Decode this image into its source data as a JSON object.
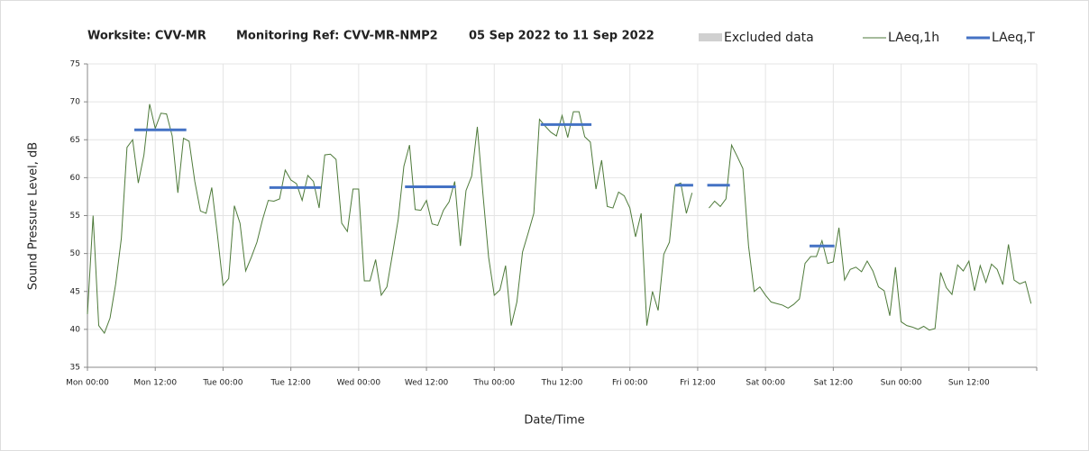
{
  "chart_data": {
    "type": "line",
    "title_parts": [
      "Worksite: CVV-MR",
      "Monitoring Ref: CVV-MR-NMP2",
      "05 Sep 2022 to 11 Sep 2022"
    ],
    "xlabel": "Date/Time",
    "ylabel": "Sound Pressure Level, dB",
    "xlim": [
      0,
      168
    ],
    "ylim": [
      35,
      75
    ],
    "grid": true,
    "yticks": [
      35,
      40,
      45,
      50,
      55,
      60,
      65,
      70,
      75
    ],
    "xticks": [
      {
        "value": 0,
        "label": "Mon 00:00"
      },
      {
        "value": 12,
        "label": "Mon 12:00"
      },
      {
        "value": 24,
        "label": "Tue 00:00"
      },
      {
        "value": 36,
        "label": "Tue 12:00"
      },
      {
        "value": 48,
        "label": "Wed 00:00"
      },
      {
        "value": 60,
        "label": "Wed 12:00"
      },
      {
        "value": 72,
        "label": "Thu 00:00"
      },
      {
        "value": 84,
        "label": "Thu 12:00"
      },
      {
        "value": 96,
        "label": "Fri 00:00"
      },
      {
        "value": 108,
        "label": "Fri 12:00"
      },
      {
        "value": 120,
        "label": "Sat 00:00"
      },
      {
        "value": 132,
        "label": "Sat 12:00"
      },
      {
        "value": 144,
        "label": "Sun 00:00"
      },
      {
        "value": 156,
        "label": "Sun 12:00"
      },
      {
        "value": 168,
        "label": ""
      }
    ],
    "series": [
      {
        "name": "Excluded data",
        "color": "#d0d0d0",
        "kind": "area",
        "values": []
      },
      {
        "name": "LAeq,1h",
        "color": "#4e7a3a",
        "kind": "line",
        "x": [
          0,
          1,
          2,
          3,
          4,
          5,
          6,
          7,
          8,
          9,
          10,
          11,
          12,
          13,
          14,
          15,
          16,
          17,
          18,
          19,
          20,
          21,
          22,
          23,
          24,
          25,
          26,
          27,
          28,
          29,
          30,
          31,
          32,
          33,
          34,
          35,
          36,
          37,
          38,
          39,
          40,
          41,
          42,
          43,
          44,
          45,
          46,
          47,
          48,
          49,
          50,
          51,
          52,
          53,
          54,
          55,
          56,
          57,
          58,
          59,
          60,
          61,
          62,
          63,
          64,
          65,
          66,
          67,
          68,
          69,
          70,
          71,
          72,
          73,
          74,
          75,
          76,
          77,
          78,
          79,
          80,
          81,
          82,
          83,
          84,
          85,
          86,
          87,
          88,
          89,
          90,
          91,
          92,
          93,
          94,
          95,
          96,
          97,
          98,
          99,
          100,
          101,
          102,
          103,
          104,
          105,
          106,
          107,
          108,
          109,
          110,
          111,
          112,
          113,
          114,
          115,
          116,
          117,
          118,
          119,
          120,
          121,
          122,
          123,
          124,
          125,
          126,
          127,
          128,
          129,
          130,
          131,
          132,
          133,
          134,
          135,
          136,
          137,
          138,
          139,
          140,
          141,
          142,
          143,
          144,
          145,
          146,
          147,
          148,
          149,
          150,
          151,
          152,
          153,
          154,
          155,
          156,
          157,
          158,
          159,
          160,
          161,
          162,
          163,
          164,
          165,
          166,
          167
        ],
        "values": [
          42,
          55,
          40.5,
          39.5,
          41.5,
          46,
          52,
          64,
          65,
          59.3,
          63,
          69.7,
          66.5,
          68.5,
          68.4,
          65.5,
          58,
          65.2,
          64.8,
          59.5,
          55.6,
          55.3,
          58.7,
          52.5,
          45.8,
          46.7,
          56.3,
          54,
          47.7,
          49.5,
          51.5,
          54.5,
          57,
          56.9,
          57.2,
          61,
          59.7,
          59.2,
          57,
          60.3,
          59.5,
          56,
          63,
          63.1,
          62.4,
          54,
          52.9,
          58.5,
          58.5,
          46.4,
          46.4,
          49.2,
          44.5,
          45.6,
          50,
          54.5,
          61.5,
          64.3,
          55.8,
          55.7,
          57,
          53.9,
          53.7,
          55.7,
          56.8,
          59.5,
          51,
          58.3,
          60.2,
          66.7,
          57.8,
          49.5,
          44.5,
          45.2,
          48.4,
          40.5,
          43.6,
          50.2,
          52.7,
          55.3,
          67.7,
          66.8,
          66,
          65.5,
          68.2,
          65.3,
          68.7,
          68.7,
          65.4,
          64.7,
          58.5,
          62.3,
          56.2,
          56,
          58.1,
          57.6,
          56,
          52.2,
          55.3,
          40.5,
          45,
          42.5,
          49.9,
          51.5,
          59,
          59.3,
          55.3,
          58,
          null,
          null,
          56,
          56.9,
          56.2,
          57.2,
          64.3,
          62.8,
          61.2,
          51,
          45,
          45.6,
          44.5,
          43.6,
          43.4,
          43.2,
          42.8,
          43.3,
          44,
          48.7,
          49.6,
          49.6,
          51.7,
          48.7,
          48.9,
          53.4,
          46.5,
          47.9,
          48.2,
          47.6,
          49,
          47.7,
          45.6,
          45.1,
          41.8,
          48.2,
          41,
          40.5,
          40.3,
          40,
          40.4,
          39.9,
          40.1,
          47.5,
          45.5,
          44.6,
          48.5,
          47.7,
          49,
          45.1,
          48.4,
          46.2,
          48.6,
          47.9,
          45.9,
          51.2,
          46.5,
          46,
          46.3,
          43.4
        ]
      },
      {
        "name": "LAeq,T",
        "color": "#4472c4",
        "kind": "segments",
        "x_start": [
          8.3,
          32.2,
          56.2,
          80.2,
          104,
          109.7,
          127.8
        ],
        "x_end": [
          17.5,
          41.3,
          65.2,
          89.2,
          107.2,
          113.7,
          132.2
        ],
        "values": [
          66.3,
          58.7,
          58.8,
          67,
          59,
          59,
          51
        ]
      }
    ]
  }
}
